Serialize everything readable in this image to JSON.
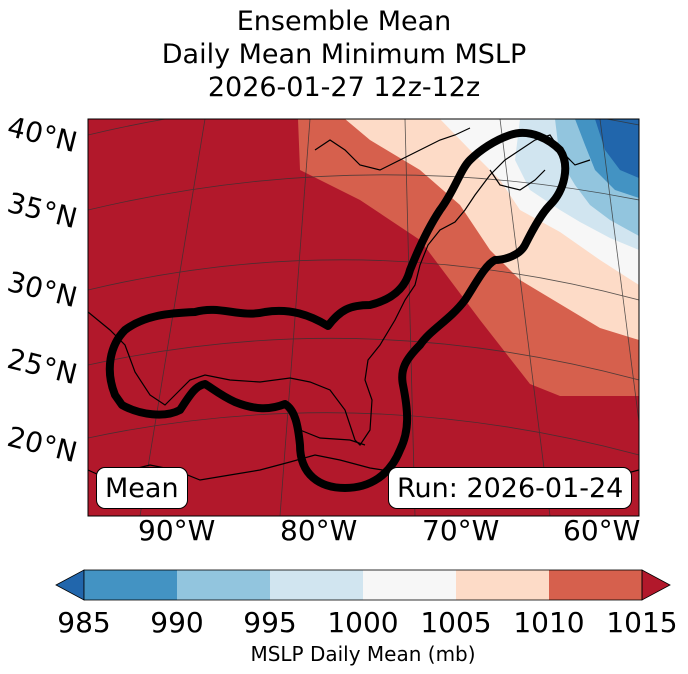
{
  "title": {
    "line1": "Ensemble Mean",
    "line2": "Daily Mean Minimum MSLP",
    "line3": "2026-01-27 12z-12z"
  },
  "map": {
    "lat_labels": [
      "40°N",
      "35°N",
      "30°N",
      "25°N",
      "20°N"
    ],
    "lon_labels": [
      "90°W",
      "80°W",
      "70°W",
      "60°W"
    ],
    "left_box": "Mean",
    "right_box": "Run: 2026-01-24",
    "fill_color": "#b2182b",
    "contour_color": "#000000"
  },
  "colorbar": {
    "label": "MSLP Daily Mean (mb)",
    "ticks": [
      "985",
      "990",
      "995",
      "1000",
      "1005",
      "1010",
      "1015"
    ],
    "colors": {
      "under": "#2166ac",
      "c985_990": "#4393c3",
      "c990_995": "#92c5de",
      "c995_1000": "#d1e5f0",
      "c1000_1005": "#f7f7f7",
      "c1005_1010": "#fddbc7",
      "c1010_1015": "#d6604d",
      "over": "#b2182b"
    }
  }
}
